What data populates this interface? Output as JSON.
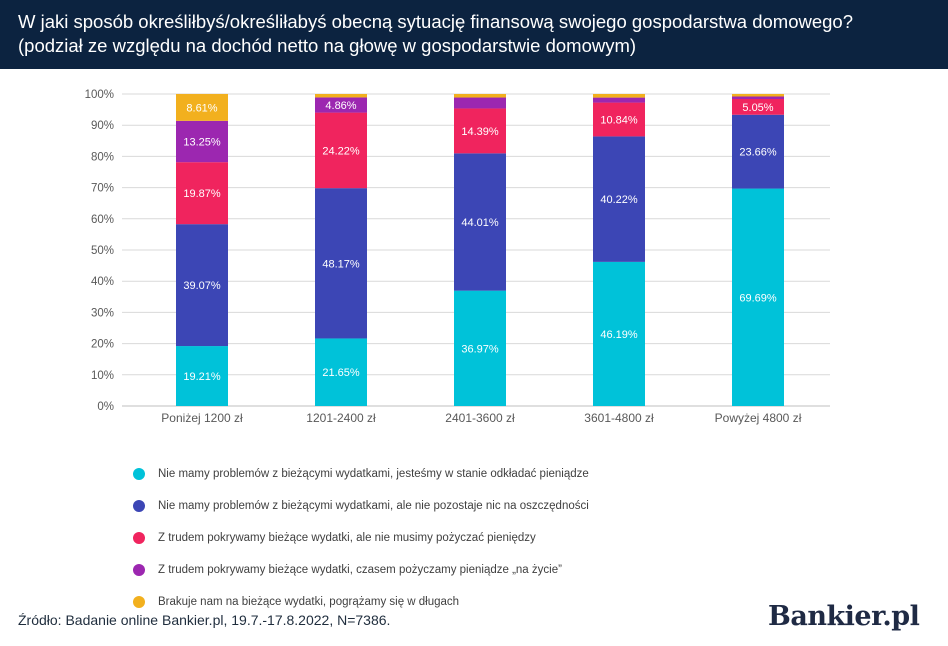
{
  "title_line1": "W jaki sposób określiłbyś/określiłabyś obecną sytuację finansową swojego gospodarstwa domowego?",
  "title_line2": "(podział ze względu na dochód netto na głowę w gospodarstwie domowym)",
  "source": "Źródło: Badanie online Bankier.pl, 19.7.-17.8.2022, N=7386.",
  "logo": "Bankier.pl",
  "chart_data": {
    "type": "bar",
    "stacked": true,
    "categories": [
      "Poniżej 1200 zł",
      "1201-2400 zł",
      "2401-3600 zł",
      "3601-4800 zł",
      "Powyżej 4800 zł"
    ],
    "ylim": [
      0,
      100
    ],
    "yticks": [
      "0%",
      "10%",
      "20%",
      "30%",
      "40%",
      "50%",
      "60%",
      "70%",
      "80%",
      "90%",
      "100%"
    ],
    "grid": true,
    "legend_position": "bottom",
    "series": [
      {
        "name": "Nie mamy problemów z bieżącymi wydatkami, jesteśmy w stanie odkładać pieniądze",
        "color": "#00c2d9",
        "values": [
          19.21,
          21.65,
          36.97,
          46.19,
          69.69
        ],
        "labels": [
          "19.21%",
          "21.65%",
          "36.97%",
          "46.19%",
          "69.69%"
        ]
      },
      {
        "name": "Nie mamy problemów z bieżącymi wydatkami, ale nie pozostaje nic na oszczędności",
        "color": "#3c46b5",
        "values": [
          39.07,
          48.17,
          44.01,
          40.22,
          23.66
        ],
        "labels": [
          "39.07%",
          "48.17%",
          "44.01%",
          "40.22%",
          "23.66%"
        ]
      },
      {
        "name": "Z trudem pokrywamy bieżące wydatki, ale nie musimy pożyczać pieniędzy",
        "color": "#f0245e",
        "values": [
          19.87,
          24.22,
          14.39,
          10.84,
          5.05
        ],
        "labels": [
          "19.87%",
          "24.22%",
          "14.39%",
          "10.84%",
          "5.05%"
        ]
      },
      {
        "name": "Z trudem pokrywamy bieżące wydatki, czasem pożyczamy pieniądze „na życie”",
        "color": "#9c27b0",
        "values": [
          13.25,
          4.86,
          3.5,
          1.6,
          0.8
        ],
        "labels": [
          "13.25%",
          "4.86%",
          "",
          "",
          ""
        ]
      },
      {
        "name": "Brakuje nam na bieżące wydatki, pogrążamy się w długach",
        "color": "#f2b01e",
        "values": [
          8.61,
          1.1,
          1.13,
          1.15,
          0.8
        ],
        "labels": [
          "8.61%",
          "",
          "",
          "",
          ""
        ]
      }
    ]
  }
}
